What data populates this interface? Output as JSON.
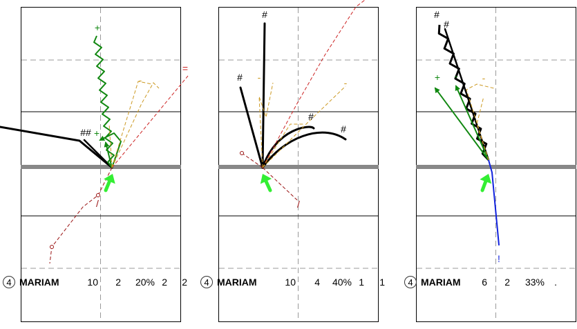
{
  "colors": {
    "frame": "#000000",
    "grid_dash": "#999999",
    "baseline": "#888888",
    "green_arrow": "#33ee33",
    "dark_green": "#118811",
    "red": "#cc2222",
    "dark_red": "#991111",
    "orange": "#cc9922",
    "black": "#000000",
    "blue": "#1122dd"
  },
  "chart_data": [
    {
      "type": "other",
      "panel": 1,
      "stats": {
        "circle": "4",
        "name": "MARIAM",
        "v1": "10",
        "v2": "2",
        "pct": "20%",
        "v3": "2",
        "v4": "2"
      },
      "markers": [
        "+",
        "##",
        "+",
        "=",
        "-",
        "/"
      ],
      "traces": [
        {
          "kind": "segments",
          "color": "#000000",
          "width": 3,
          "points": [
            [
              0,
              184
            ],
            [
              115,
              204
            ],
            [
              162,
              243
            ]
          ]
        },
        {
          "kind": "segments",
          "color": "#000000",
          "width": 2.5,
          "points": [
            [
              162,
              243
            ],
            [
              122,
              203
            ]
          ]
        },
        {
          "kind": "zigzag",
          "color": "#118811",
          "width": 2,
          "from": [
            162,
            243
          ],
          "to": [
            140,
            52
          ],
          "amp": 5,
          "steps": 22,
          "arrow": false
        },
        {
          "kind": "arrow",
          "color": "#118811",
          "width": 2,
          "points": [
            [
              162,
              243
            ],
            [
              175,
              205
            ],
            [
              165,
              193
            ],
            [
              145,
              203
            ]
          ]
        },
        {
          "kind": "arrow",
          "color": "#118811",
          "width": 2,
          "points": [
            [
              162,
              243
            ],
            [
              153,
              207
            ]
          ]
        },
        {
          "kind": "dashed",
          "color": "#cc2222",
          "width": 1,
          "points": [
            [
              162,
              243
            ],
            [
              272,
              110
            ]
          ]
        },
        {
          "kind": "dashed",
          "color": "#991111",
          "width": 1,
          "points": [
            [
              162,
              243
            ],
            [
              142,
              283
            ],
            [
              120,
              300
            ],
            [
              75,
              358
            ],
            [
              72,
              382
            ]
          ]
        },
        {
          "kind": "dashed",
          "color": "#cc9922",
          "width": 1,
          "points": [
            [
              162,
              243
            ],
            [
              205,
              150
            ],
            [
              222,
              120
            ],
            [
              230,
              128
            ]
          ]
        },
        {
          "kind": "dashed",
          "color": "#cc9922",
          "width": 1,
          "points": [
            [
              162,
              243
            ],
            [
              200,
              118
            ],
            [
              220,
              122
            ]
          ]
        },
        {
          "kind": "dashed",
          "color": "#cc9922",
          "width": 1,
          "points": [
            [
              162,
              243
            ],
            [
              158,
              180
            ]
          ]
        }
      ],
      "circles": [
        [
          142,
          283
        ],
        [
          75,
          358
        ]
      ],
      "bigarrow": {
        "from": [
          153,
          276
        ],
        "to": [
          163,
          252
        ]
      }
    },
    {
      "type": "other",
      "panel": 2,
      "stats": {
        "circle": "4",
        "name": "MARIAM",
        "v1": "10",
        "v2": "4",
        "pct": "40%",
        "v3": "1",
        "v4": "1"
      },
      "markers": [
        "#",
        "#",
        "#",
        "#",
        "-",
        "-",
        "/"
      ],
      "traces": [
        {
          "kind": "segments",
          "color": "#000000",
          "width": 3,
          "points": [
            [
              380,
              243
            ],
            [
              383,
              34
            ]
          ]
        },
        {
          "kind": "segments",
          "color": "#000000",
          "width": 3,
          "points": [
            [
              380,
              243
            ],
            [
              348,
              127
            ]
          ]
        },
        {
          "kind": "curve",
          "color": "#000000",
          "width": 3,
          "points": [
            [
              380,
              243
            ],
            [
              400,
              185
            ],
            [
              450,
              180
            ],
            [
              454,
              186
            ]
          ]
        },
        {
          "kind": "curve",
          "color": "#000000",
          "width": 3,
          "points": [
            [
              380,
              243
            ],
            [
              410,
              200
            ],
            [
              465,
              178
            ],
            [
              500,
              202
            ]
          ]
        },
        {
          "kind": "dashed",
          "color": "#cc2222",
          "width": 1,
          "points": [
            [
              380,
              243
            ],
            [
              430,
              150
            ],
            [
              470,
              80
            ],
            [
              515,
              10
            ],
            [
              528,
              0
            ]
          ]
        },
        {
          "kind": "dashed",
          "color": "#991111",
          "width": 1,
          "points": [
            [
              380,
              243
            ],
            [
              430,
              290
            ]
          ]
        },
        {
          "kind": "dashed",
          "color": "#991111",
          "width": 1,
          "points": [
            [
              380,
              243
            ],
            [
              350,
              222
            ]
          ]
        },
        {
          "kind": "dashed",
          "color": "#cc9922",
          "width": 1,
          "points": [
            [
              380,
              243
            ],
            [
              375,
              140
            ],
            [
              385,
              170
            ],
            [
              395,
              120
            ]
          ]
        },
        {
          "kind": "dashed",
          "color": "#cc9922",
          "width": 1,
          "points": [
            [
              380,
              243
            ],
            [
              445,
              178
            ],
            [
              500,
              125
            ]
          ]
        },
        {
          "kind": "dashed",
          "color": "#cc9922",
          "width": 1,
          "points": [
            [
              380,
              243
            ],
            [
              420,
              180
            ],
            [
              440,
              180
            ]
          ]
        }
      ],
      "circles": [
        [
          350,
          222
        ]
      ],
      "bigarrow": {
        "from": [
          391,
          276
        ],
        "to": [
          380,
          252
        ]
      }
    },
    {
      "type": "other",
      "panel": 3,
      "stats": {
        "circle": "4",
        "name": "MARIAM",
        "v1": "6",
        "v2": "2",
        "pct": "33%",
        "v3": ".",
        "v4": ""
      },
      "markers": [
        "#",
        "#",
        "+",
        "-",
        "-",
        "!"
      ],
      "traces": [
        {
          "kind": "zigzag",
          "color": "#000000",
          "width": 3,
          "from": [
            707,
            232
          ],
          "to": [
            636,
            36
          ],
          "amp": 5,
          "steps": 18,
          "arrow": false
        },
        {
          "kind": "segments",
          "color": "#000000",
          "width": 2.5,
          "points": [
            [
              707,
              232
            ],
            [
              644,
              42
            ]
          ]
        },
        {
          "kind": "arrow",
          "color": "#118811",
          "width": 2,
          "points": [
            [
              707,
              232
            ],
            [
              630,
              128
            ]
          ]
        },
        {
          "kind": "arrow",
          "color": "#118811",
          "width": 2,
          "points": [
            [
              707,
              232
            ],
            [
              660,
              125
            ]
          ]
        },
        {
          "kind": "segments",
          "color": "#1122dd",
          "width": 2,
          "points": [
            [
              707,
              232
            ],
            [
              712,
              250
            ],
            [
              722,
              355
            ]
          ]
        },
        {
          "kind": "dashed",
          "color": "#cc9922",
          "width": 1,
          "points": [
            [
              707,
              232
            ],
            [
              675,
              130
            ],
            [
              690,
              122
            ],
            [
              715,
              128
            ]
          ]
        },
        {
          "kind": "dashed",
          "color": "#cc9922",
          "width": 1,
          "points": [
            [
              707,
              232
            ],
            [
              690,
              180
            ],
            [
              700,
              140
            ]
          ]
        }
      ],
      "circles": [],
      "bigarrow": {
        "from": [
          698,
          276
        ],
        "to": [
          707,
          252
        ]
      }
    }
  ]
}
